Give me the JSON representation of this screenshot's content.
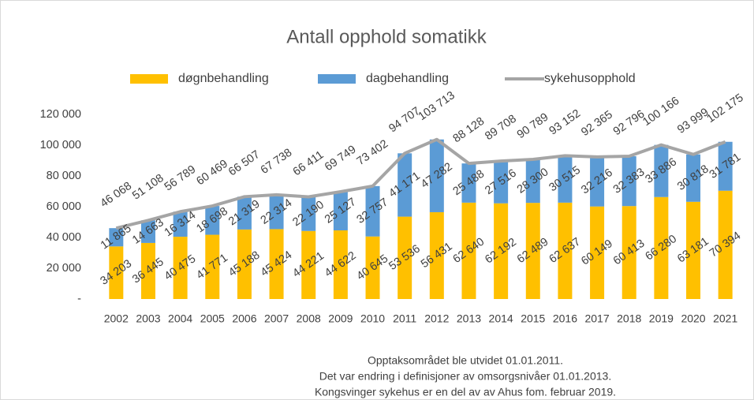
{
  "chart_data": {
    "type": "bar",
    "stacked": true,
    "title": "Antall opphold somatikk",
    "categories": [
      "2002",
      "2003",
      "2004",
      "2005",
      "2006",
      "2007",
      "2008",
      "2009",
      "2010",
      "2011",
      "2012",
      "2013",
      "2014",
      "2015",
      "2016",
      "2017",
      "2018",
      "2019",
      "2020",
      "2021"
    ],
    "series": [
      {
        "name": "døgnbehandling",
        "color": "#FFC000",
        "values": [
          34203,
          36445,
          40475,
          41771,
          45188,
          45424,
          44221,
          44622,
          40645,
          53536,
          56431,
          62640,
          62192,
          62489,
          62637,
          60149,
          60413,
          66280,
          63181,
          70394
        ],
        "value_labels": [
          "34 203",
          "36 445",
          "40 475",
          "41 771",
          "45 188",
          "45 424",
          "44 221",
          "44 622",
          "40 645",
          "53 536",
          "56 431",
          "62 640",
          "62 192",
          "62 489",
          "62 637",
          "60 149",
          "60 413",
          "66 280",
          "63 181",
          "70 394"
        ]
      },
      {
        "name": "dagbehandling",
        "color": "#5B9BD5",
        "values": [
          11865,
          14663,
          16314,
          18698,
          21319,
          22314,
          22190,
          25127,
          32757,
          41171,
          47282,
          25488,
          27516,
          28300,
          30515,
          32216,
          32383,
          33886,
          30818,
          31781
        ],
        "value_labels": [
          "11 865",
          "14 663",
          "16 314",
          "18 698",
          "21 319",
          "22 314",
          "22 190",
          "25 127",
          "32 757",
          "41 171",
          "47 282",
          "25 488",
          "27 516",
          "28 300",
          "30 515",
          "32 216",
          "32 383",
          "33 886",
          "30 818",
          "31 781"
        ]
      },
      {
        "name": "sykehusopphold",
        "color": "#A5A5A5",
        "type": "line",
        "values": [
          46068,
          51108,
          56789,
          60469,
          66507,
          67738,
          66411,
          69749,
          73402,
          94707,
          103713,
          88128,
          89708,
          90789,
          93152,
          92365,
          92796,
          100166,
          93999,
          102175
        ],
        "value_labels": [
          "46 068",
          "51 108",
          "56 789",
          "60 469",
          "66 507",
          "67 738",
          "66 411",
          "69 749",
          "73 402",
          "94 707",
          "103 713",
          "88 128",
          "89 708",
          "90 789",
          "93 152",
          "92 365",
          "92 796",
          "100 166",
          "93 999",
          "102 175"
        ]
      }
    ],
    "ylim": [
      0,
      120000
    ],
    "yticks": [
      {
        "value": 0,
        "label": "-"
      },
      {
        "value": 20000,
        "label": "20 000"
      },
      {
        "value": 40000,
        "label": "40 000"
      },
      {
        "value": 60000,
        "label": "60 000"
      },
      {
        "value": 80000,
        "label": "80 000"
      },
      {
        "value": 100000,
        "label": "100 000"
      },
      {
        "value": 120000,
        "label": "120 000"
      }
    ],
    "grid": false,
    "legend": "top",
    "notes": [
      "Opptaksområdet ble utvidet 01.01.2011.",
      "Det var endring i definisjoner av omsorgsnivåer 01.01.2013.",
      "Kongsvinger sykehus er en del av av Ahus fom. februar 2019."
    ]
  }
}
